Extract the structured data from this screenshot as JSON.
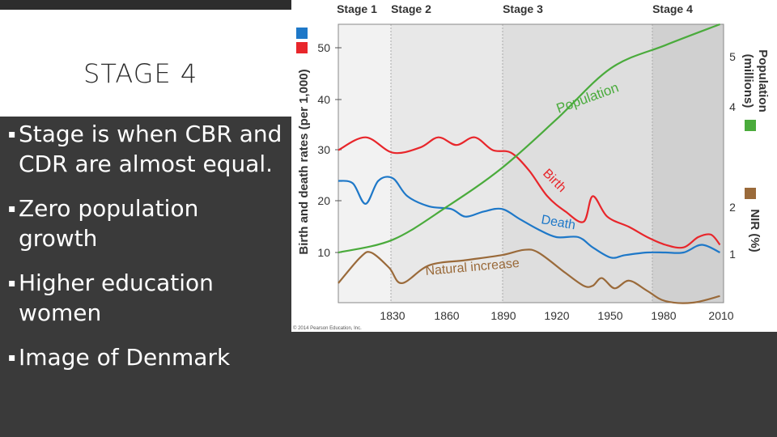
{
  "slide": {
    "title": "STAGE 4",
    "bullets": [
      "Stage is when CBR and CDR are almost equal.",
      "Zero population growth",
      "Higher education women",
      "Image of Denmark"
    ]
  },
  "chart_data": {
    "type": "line",
    "stages": [
      "Stage 1",
      "Stage 2",
      "Stage 3",
      "Stage 4"
    ],
    "x_ticks": [
      "1830",
      "1860",
      "1890",
      "1920",
      "1950",
      "1980",
      "2010"
    ],
    "ylabel_left": "Birth and death rates (per 1,000)",
    "ylabel_right_top": "Population",
    "ylabel_right_top2": "(millions)",
    "ylabel_right_bottom": "NIR (%)",
    "y_ticks_left": [
      "10",
      "20",
      "30",
      "40",
      "50"
    ],
    "y_ticks_right_top": [
      "4",
      "5"
    ],
    "y_ticks_right_bottom": [
      "1",
      "2"
    ],
    "legend_colors": {
      "blue": "#1e78c8",
      "red": "#e8262b",
      "green": "#4aab3c",
      "brown": "#9a6a3a"
    },
    "credit": "© 2014 Pearson Education, Inc.",
    "annotations": {
      "population": "Population",
      "birth": "Birth",
      "death": "Death",
      "natural_increase": "Natural increase"
    },
    "series": [
      {
        "name": "Birth",
        "color": "#e8262b",
        "x": [
          1800,
          1815,
          1830,
          1845,
          1855,
          1865,
          1875,
          1885,
          1895,
          1905,
          1915,
          1925,
          1935,
          1940,
          1948,
          1960,
          1970,
          1980,
          1990,
          1998,
          2005,
          2010
        ],
        "values": [
          30,
          32.5,
          29.5,
          30.5,
          32.5,
          31,
          32.5,
          30,
          29.5,
          26,
          21,
          18,
          16,
          21,
          17,
          15,
          13,
          11.5,
          11,
          13,
          13.5,
          11.5
        ]
      },
      {
        "name": "Death",
        "color": "#1e78c8",
        "x": [
          1800,
          1808,
          1815,
          1822,
          1830,
          1838,
          1850,
          1862,
          1870,
          1880,
          1890,
          1900,
          1910,
          1920,
          1932,
          1940,
          1950,
          1958,
          1970,
          1980,
          1990,
          2000,
          2010
        ],
        "values": [
          24,
          23.5,
          19.5,
          24,
          24.5,
          21,
          19,
          18.5,
          17,
          18,
          18.5,
          16.5,
          14.5,
          13,
          13,
          11,
          9,
          9.5,
          10,
          10,
          10,
          11.5,
          10
        ]
      },
      {
        "name": "Population",
        "color": "#4aab3c",
        "x": [
          1800,
          1830,
          1860,
          1890,
          1920,
          1950,
          1980,
          2010
        ],
        "values": [
          10,
          12.5,
          19,
          26.5,
          36,
          46,
          50.5,
          55
        ]
      },
      {
        "name": "Natural increase",
        "color": "#9a6a3a",
        "x": [
          1800,
          1812,
          1818,
          1828,
          1835,
          1850,
          1870,
          1890,
          1902,
          1910,
          1925,
          1935,
          1940,
          1945,
          1952,
          1960,
          1970,
          1980,
          1995,
          2010
        ],
        "values": [
          4,
          9,
          10,
          7,
          4,
          7.5,
          8.5,
          9.5,
          10.5,
          10,
          6,
          3.5,
          3.5,
          5,
          3,
          4.5,
          2.5,
          0.5,
          0,
          1.5
        ]
      }
    ]
  }
}
